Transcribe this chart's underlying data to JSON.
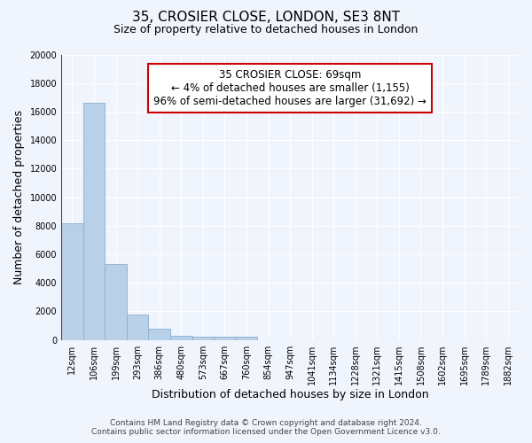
{
  "title_line1": "35, CROSIER CLOSE, LONDON, SE3 8NT",
  "title_line2": "Size of property relative to detached houses in London",
  "xlabel": "Distribution of detached houses by size in London",
  "ylabel": "Number of detached properties",
  "categories": [
    "12sqm",
    "106sqm",
    "199sqm",
    "293sqm",
    "386sqm",
    "480sqm",
    "573sqm",
    "667sqm",
    "760sqm",
    "854sqm",
    "947sqm",
    "1041sqm",
    "1134sqm",
    "1228sqm",
    "1321sqm",
    "1415sqm",
    "1508sqm",
    "1602sqm",
    "1695sqm",
    "1789sqm",
    "1882sqm"
  ],
  "values": [
    8200,
    16600,
    5300,
    1800,
    800,
    300,
    220,
    200,
    200,
    0,
    0,
    0,
    0,
    0,
    0,
    0,
    0,
    0,
    0,
    0,
    0
  ],
  "bar_color": "#b8d0e8",
  "bar_edge_color": "#8ab0d0",
  "vline_color": "#cc0000",
  "vline_position": -0.5,
  "annotation_text": "35 CROSIER CLOSE: 69sqm\n← 4% of detached houses are smaller (1,155)\n96% of semi-detached houses are larger (31,692) →",
  "annotation_box_color": "#ffffff",
  "annotation_box_edge_color": "#cc0000",
  "ylim": [
    0,
    20000
  ],
  "yticks": [
    0,
    2000,
    4000,
    6000,
    8000,
    10000,
    12000,
    14000,
    16000,
    18000,
    20000
  ],
  "footer_line1": "Contains HM Land Registry data © Crown copyright and database right 2024.",
  "footer_line2": "Contains public sector information licensed under the Open Government Licence v3.0.",
  "bg_color": "#f0f4fc",
  "plot_bg_color": "#f0f4fc",
  "grid_color": "#ffffff",
  "title_fontsize": 11,
  "subtitle_fontsize": 9,
  "tick_fontsize": 7,
  "label_fontsize": 9,
  "annotation_fontsize": 8.5,
  "footer_fontsize": 6.5
}
